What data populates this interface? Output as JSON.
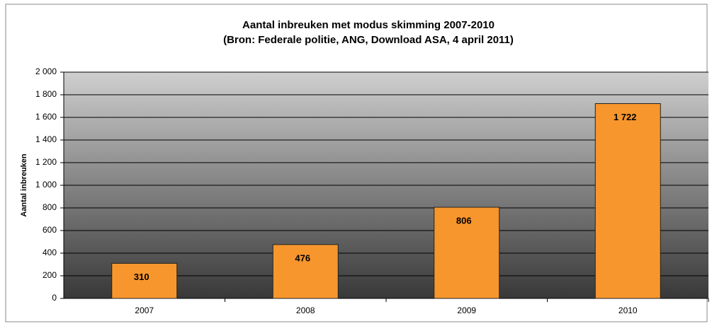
{
  "chart_data": {
    "type": "bar",
    "title": "Aantal inbreuken met modus skimming 2007-2010",
    "subtitle": "(Bron: Federale politie, ANG, Download ASA, 4 april 2011)",
    "y_label": "Aantal inbreuken",
    "categories": [
      "2007",
      "2008",
      "2009",
      "2010"
    ],
    "values": [
      310,
      476,
      806,
      1722
    ],
    "value_labels": [
      "310",
      "476",
      "806",
      "1 722"
    ],
    "color": "#f7962d",
    "ylim": [
      0,
      2000
    ],
    "yticks": [
      0,
      200,
      400,
      600,
      800,
      {
        "value": 1000,
        "label": "1 000"
      },
      {
        "value": 1200,
        "label": "1 200"
      },
      {
        "value": 1400,
        "label": "1 400"
      },
      {
        "value": 1600,
        "label": "1 600"
      },
      {
        "value": 1800,
        "label": "1 800"
      },
      {
        "value": 2000,
        "label": "2 000"
      }
    ],
    "grid": true
  }
}
